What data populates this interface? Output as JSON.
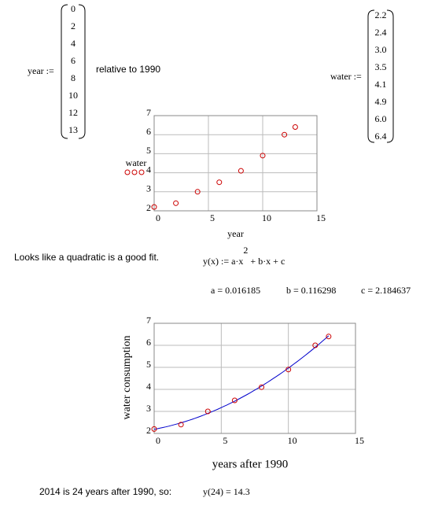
{
  "year_def": {
    "label": "year :=",
    "values": [
      0,
      2,
      4,
      6,
      8,
      10,
      12,
      13
    ]
  },
  "note": "relative to 1990",
  "water_def": {
    "label": "water :=",
    "values": [
      2.2,
      2.4,
      3,
      3.5,
      4.1,
      4.9,
      6,
      6.4
    ],
    "value_labels": [
      "2.2",
      "2.4",
      "3.0",
      "3.5",
      "4.1",
      "4.9",
      "6.0",
      "6.4"
    ]
  },
  "charts": [
    {
      "type": "scatter",
      "x_label": "year",
      "y_label": "water",
      "x": [
        0,
        2,
        4,
        6,
        8,
        10,
        12,
        13
      ],
      "values": [
        2.2,
        2.4,
        3,
        3.5,
        4.1,
        4.9,
        6,
        6.4
      ],
      "color": "#cc0000",
      "xlim": [
        0,
        15
      ],
      "ylim": [
        2,
        7
      ],
      "xticks": [
        0,
        5,
        10,
        15
      ],
      "yticks": [
        2,
        3,
        4,
        5,
        6,
        7
      ],
      "grid": true
    },
    {
      "type": "scatter",
      "x_label": "years after 1990",
      "y_label": "water consumption",
      "x": [
        0,
        2,
        4,
        6,
        8,
        10,
        12,
        13
      ],
      "values": [
        2.2,
        2.4,
        3,
        3.5,
        4.1,
        4.9,
        6,
        6.4
      ],
      "color": "#cc0000",
      "fit_color": "#0000cc",
      "xlim": [
        0,
        15
      ],
      "ylim": [
        2,
        7
      ],
      "xticks": [
        0,
        5,
        10,
        15
      ],
      "yticks": [
        2,
        3,
        4,
        5,
        6,
        7
      ],
      "grid": true
    }
  ],
  "comment": "Looks like a quadratic is a good fit.",
  "formula": {
    "head": "y(x) := a·x",
    "sup": "2",
    "tail": " + b·x + c"
  },
  "fit": {
    "a": 0.016185,
    "b": 0.116298,
    "c": 2.184637,
    "a_text": "a = 0.016185",
    "b_text": "b = 0.116298",
    "c_text": "c = 2.184637"
  },
  "conclusion": "2014 is 24 years after 1990, so:",
  "prediction": "y(24) = 14.3"
}
